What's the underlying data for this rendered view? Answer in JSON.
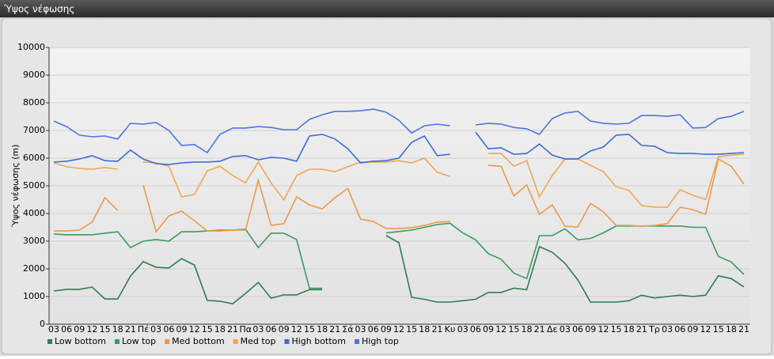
{
  "chart_data": {
    "type": "line",
    "title": "Ύψος νέφωσης",
    "y_label": "Ύψος νέφωσης (m)",
    "categories": [
      "03",
      "06",
      "09",
      "12",
      "15",
      "18",
      "21",
      "Πέ",
      "03",
      "06",
      "09",
      "12",
      "15",
      "18",
      "21",
      "Πα",
      "03",
      "06",
      "09",
      "12",
      "15",
      "18",
      "21",
      "Σά",
      "03",
      "06",
      "09",
      "12",
      "15",
      "18",
      "21",
      "Κυ",
      "03",
      "06",
      "09",
      "12",
      "15",
      "18",
      "21",
      "Δε",
      "03",
      "06",
      "09",
      "12",
      "15",
      "18",
      "21",
      "Τρ",
      "03",
      "06",
      "09",
      "12",
      "15",
      "18",
      "21"
    ],
    "ylim": [
      0,
      10000
    ],
    "yticks": [
      0,
      1000,
      2000,
      3000,
      4000,
      5000,
      6000,
      7000,
      8000,
      9000,
      10000
    ],
    "grid": true,
    "series": [
      {
        "name": "Low bottom",
        "color": "#2e7d4f",
        "values": [
          1200,
          1260,
          1260,
          1340,
          910,
          910,
          1740,
          2260,
          2060,
          2030,
          2370,
          2140,
          860,
          830,
          740,
          1110,
          1510,
          940,
          1060,
          1060,
          1250,
          1250,
          null,
          null,
          null,
          null,
          3200,
          2950,
          970,
          900,
          800,
          800,
          850,
          900,
          1150,
          1150,
          1300,
          1250,
          2800,
          2600,
          2200,
          1600,
          800,
          800,
          800,
          850,
          1050,
          950,
          1000,
          1050,
          1000,
          1050,
          1750,
          1650,
          1350
        ]
      },
      {
        "name": "Low top",
        "color": "#3c9a62",
        "values": [
          3260,
          3230,
          3230,
          3230,
          3290,
          3340,
          2770,
          3000,
          3060,
          3000,
          3340,
          3340,
          3370,
          3400,
          3400,
          3430,
          2770,
          3290,
          3290,
          3060,
          1300,
          1300,
          null,
          null,
          null,
          null,
          3300,
          3350,
          3400,
          3500,
          3600,
          3650,
          3300,
          3050,
          2550,
          2350,
          1850,
          1650,
          3200,
          3200,
          3450,
          3050,
          3100,
          3300,
          3550,
          3550,
          3550,
          3550,
          3550,
          3550,
          3500,
          3500,
          2450,
          2250,
          1800
        ]
      },
      {
        "name": "Med bottom",
        "color": "#ec9a4a",
        "values": [
          3370,
          3370,
          3400,
          3690,
          4570,
          4110,
          null,
          5030,
          3340,
          3910,
          4090,
          3740,
          3370,
          3370,
          3400,
          3400,
          5200,
          3570,
          3630,
          4600,
          4310,
          4170,
          4570,
          4910,
          3800,
          3710,
          3460,
          3460,
          3490,
          3570,
          3690,
          3710,
          null,
          null,
          5740,
          5710,
          4630,
          5030,
          3970,
          4310,
          3540,
          3510,
          4370,
          4060,
          3570,
          3570,
          3540,
          3570,
          3630,
          4230,
          4140,
          3970,
          5970,
          5710,
          5060
        ]
      },
      {
        "name": "Med top",
        "color": "#f0a655",
        "values": [
          5830,
          5690,
          5630,
          5600,
          5660,
          5600,
          null,
          5860,
          5830,
          5710,
          4600,
          4690,
          5540,
          5710,
          5370,
          5110,
          5860,
          5110,
          4490,
          5370,
          5600,
          5600,
          5510,
          5690,
          5860,
          5860,
          5860,
          5910,
          5830,
          6000,
          5490,
          5340,
          null,
          null,
          6170,
          6170,
          5710,
          5910,
          4600,
          5370,
          5970,
          5970,
          5740,
          5510,
          4970,
          4830,
          4290,
          4230,
          4230,
          4860,
          4660,
          4510,
          6060,
          6100,
          6140
        ]
      },
      {
        "name": "High bottom",
        "color": "#3f6ad8",
        "values": [
          5860,
          5890,
          5970,
          6090,
          5910,
          5890,
          6290,
          5970,
          5800,
          5770,
          5830,
          5860,
          5860,
          5890,
          6060,
          6090,
          5940,
          6030,
          6000,
          5890,
          6800,
          6860,
          6690,
          6340,
          5830,
          5890,
          5910,
          6000,
          6570,
          6800,
          6090,
          6140,
          null,
          6940,
          6340,
          6370,
          6140,
          6170,
          6510,
          6110,
          5970,
          5970,
          6260,
          6400,
          6830,
          6860,
          6460,
          6430,
          6200,
          6170,
          6170,
          6140,
          6140,
          6170,
          6200
        ]
      },
      {
        "name": "High top",
        "color": "#4f75e0",
        "values": [
          7340,
          7140,
          6830,
          6770,
          6800,
          6690,
          7260,
          7230,
          7290,
          7000,
          6460,
          6490,
          6200,
          6860,
          7090,
          7090,
          7140,
          7110,
          7030,
          7030,
          7400,
          7570,
          7690,
          7690,
          7710,
          7770,
          7660,
          7370,
          6910,
          7170,
          7230,
          7170,
          null,
          7200,
          7260,
          7230,
          7110,
          7060,
          6860,
          7430,
          7630,
          7690,
          7340,
          7260,
          7230,
          7260,
          7540,
          7540,
          7510,
          7570,
          7090,
          7110,
          7430,
          7510,
          7690
        ]
      }
    ]
  }
}
